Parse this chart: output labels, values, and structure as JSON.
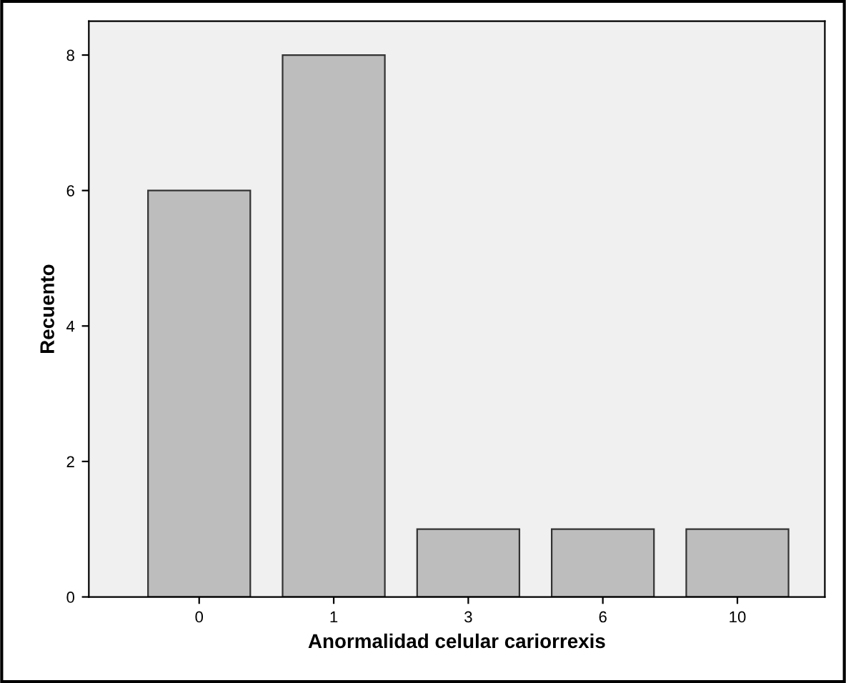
{
  "chart_data": {
    "type": "bar",
    "xlabel": "Anormalidad celular cariorrexis",
    "ylabel": "Recuento",
    "categories": [
      "0",
      "1",
      "3",
      "6",
      "10"
    ],
    "values": [
      6,
      8,
      1,
      1,
      1
    ],
    "color": "#bdbdbd",
    "ylim": [
      0,
      8.5
    ],
    "yticks": [
      0,
      2,
      4,
      6,
      8
    ],
    "grid": false
  }
}
